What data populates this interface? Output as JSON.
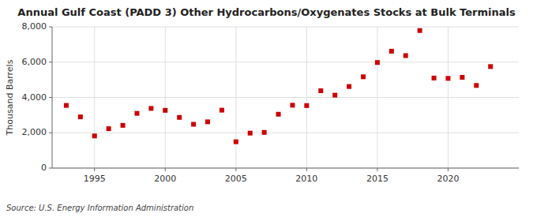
{
  "chart_data": {
    "type": "scatter",
    "title": "Annual Gulf Coast (PADD 3) Other Hydrocarbons/Oxygenates Stocks at Bulk Terminals",
    "ylabel": "Thousand Barrels",
    "annotation": "Source: U.S. Energy Information Administration",
    "color": "#cc0000",
    "marker": "square",
    "grid": true,
    "x": [
      1993,
      1994,
      1995,
      1996,
      1997,
      1998,
      1999,
      2000,
      2001,
      2002,
      2003,
      2004,
      2005,
      2006,
      2007,
      2008,
      2009,
      2010,
      2011,
      2012,
      2013,
      2014,
      2015,
      2016,
      2017,
      2018,
      2019,
      2020,
      2021,
      2022,
      2023
    ],
    "values": [
      3550,
      2900,
      1820,
      2230,
      2420,
      3100,
      3380,
      3270,
      2870,
      2480,
      2620,
      3280,
      1490,
      1980,
      2020,
      3050,
      3560,
      3540,
      4380,
      4130,
      4620,
      5170,
      5980,
      6620,
      6370,
      7790,
      5100,
      5080,
      5140,
      4680,
      5750
    ],
    "xlim": [
      1992,
      2025
    ],
    "ylim": [
      0,
      8000
    ],
    "xticks": [
      1995,
      2000,
      2005,
      2010,
      2015,
      2020
    ],
    "yticks": [
      0,
      {
        "value": 2000,
        "label": "2,000"
      },
      {
        "value": 4000,
        "label": "4,000"
      },
      {
        "value": 6000,
        "label": "6,000"
      },
      {
        "value": 8000,
        "label": "8,000"
      }
    ]
  }
}
